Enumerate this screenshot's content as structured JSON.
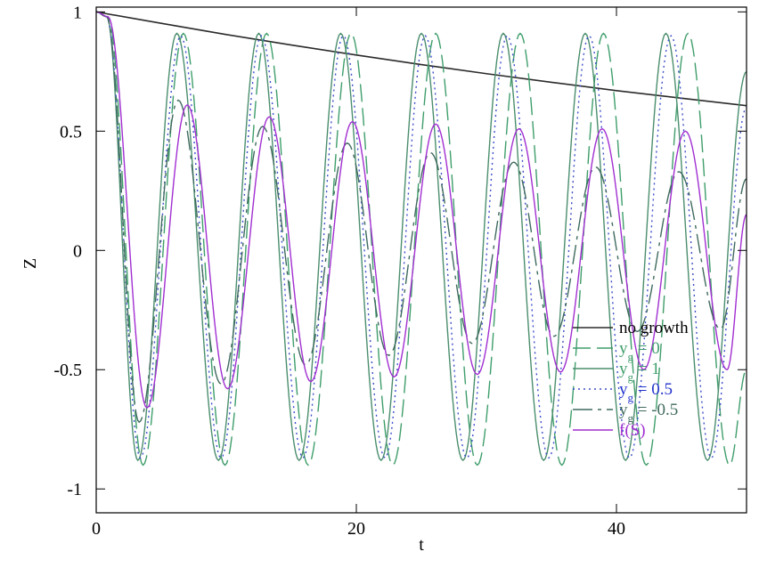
{
  "chart_data": {
    "type": "line",
    "title": "",
    "xlabel": "t",
    "ylabel": "Z",
    "xlim": [
      0,
      50
    ],
    "ylim": [
      -1.1,
      1.02
    ],
    "xticks": [
      0,
      20,
      40
    ],
    "yticks": [
      -1,
      -0.5,
      0,
      0.5,
      1
    ],
    "ytick_labels": [
      "-1",
      "-0.5",
      "0",
      "0.5",
      "1"
    ],
    "legend_position": "bottom-right",
    "grid": false,
    "series": [
      {
        "name": "no growth",
        "name_sub": "",
        "name_rest": "",
        "color": "#2b2b2b",
        "dash": "",
        "label_color": "#000000",
        "x": [
          0,
          5,
          10,
          15,
          20,
          25,
          30,
          35,
          40,
          45,
          50
        ],
        "y": [
          1.0,
          0.952,
          0.905,
          0.861,
          0.819,
          0.779,
          0.741,
          0.705,
          0.67,
          0.638,
          0.607
        ]
      },
      {
        "name": "y",
        "name_sub": "g",
        "name_rest": " = 0",
        "color": "#3f9e6b",
        "dash": "20,7",
        "label_color": "#3f9e6b",
        "x": [
          0,
          0.9,
          3.6,
          6.7,
          9.9,
          13.1,
          16.3,
          19.6,
          22.8,
          26.1,
          29.3,
          32.6,
          35.8,
          39.0,
          42.3,
          45.5,
          48.7,
          50
        ],
        "y": [
          1.0,
          0.98,
          -0.9,
          0.91,
          -0.9,
          0.91,
          -0.9,
          0.91,
          -0.9,
          0.91,
          -0.9,
          0.91,
          -0.9,
          0.91,
          -0.9,
          0.91,
          -0.9,
          -0.5
        ]
      },
      {
        "name": "y",
        "name_sub": "g",
        "name_rest": " = 1",
        "color": "#4b8e6e",
        "dash": "",
        "label_color": "#3f9e6b",
        "x": [
          0,
          0.8,
          3.2,
          6.2,
          9.4,
          12.5,
          15.6,
          18.8,
          21.9,
          25.0,
          28.2,
          31.3,
          34.4,
          37.6,
          40.7,
          43.8,
          47.0,
          50
        ],
        "y": [
          1.0,
          0.98,
          -0.88,
          0.91,
          -0.88,
          0.91,
          -0.88,
          0.91,
          -0.88,
          0.91,
          -0.88,
          0.91,
          -0.88,
          0.91,
          -0.88,
          0.91,
          -0.88,
          0.75
        ]
      },
      {
        "name": "y",
        "name_sub": "g",
        "name_rest": " = 0.5",
        "color": "#3c4ec9",
        "dash": "2,4",
        "label_color": "#2233cc",
        "x": [
          0,
          0.8,
          3.4,
          6.5,
          9.6,
          12.7,
          15.9,
          19.0,
          22.2,
          25.3,
          28.5,
          31.6,
          34.8,
          37.9,
          41.0,
          44.2,
          47.3,
          50
        ],
        "y": [
          1.0,
          0.98,
          -0.87,
          0.9,
          -0.87,
          0.9,
          -0.87,
          0.9,
          -0.87,
          0.9,
          -0.87,
          0.9,
          -0.87,
          0.9,
          -0.87,
          0.9,
          -0.87,
          0.6
        ]
      },
      {
        "name": "y",
        "name_sub": "g",
        "name_rest": " = -0.5",
        "color": "#3f6a5e",
        "dash": "22,6,4,6",
        "label_color": "#3f6a5e",
        "x": [
          0,
          0.8,
          3.3,
          6.3,
          9.6,
          12.8,
          16.1,
          19.3,
          22.5,
          25.7,
          28.9,
          32.1,
          35.2,
          38.4,
          41.6,
          44.8,
          48.0,
          50
        ],
        "y": [
          1.0,
          0.98,
          -0.72,
          0.63,
          -0.56,
          0.52,
          -0.48,
          0.45,
          -0.44,
          0.41,
          -0.39,
          0.37,
          -0.36,
          0.35,
          -0.34,
          0.33,
          -0.33,
          0.3
        ]
      },
      {
        "name": "f(S)",
        "name_sub": "",
        "name_rest": "",
        "color": "#a12fd1",
        "dash": "",
        "label_color": "#a12fd1",
        "x": [
          0,
          0.9,
          3.9,
          7.0,
          10.1,
          13.3,
          16.5,
          19.7,
          22.9,
          26.1,
          29.3,
          32.5,
          35.7,
          38.9,
          42.1,
          45.3,
          48.5,
          50
        ],
        "y": [
          1.0,
          0.98,
          -0.66,
          0.61,
          -0.58,
          0.56,
          -0.55,
          0.54,
          -0.53,
          0.53,
          -0.52,
          0.51,
          -0.51,
          0.51,
          -0.5,
          0.5,
          -0.5,
          0.15
        ]
      }
    ]
  }
}
